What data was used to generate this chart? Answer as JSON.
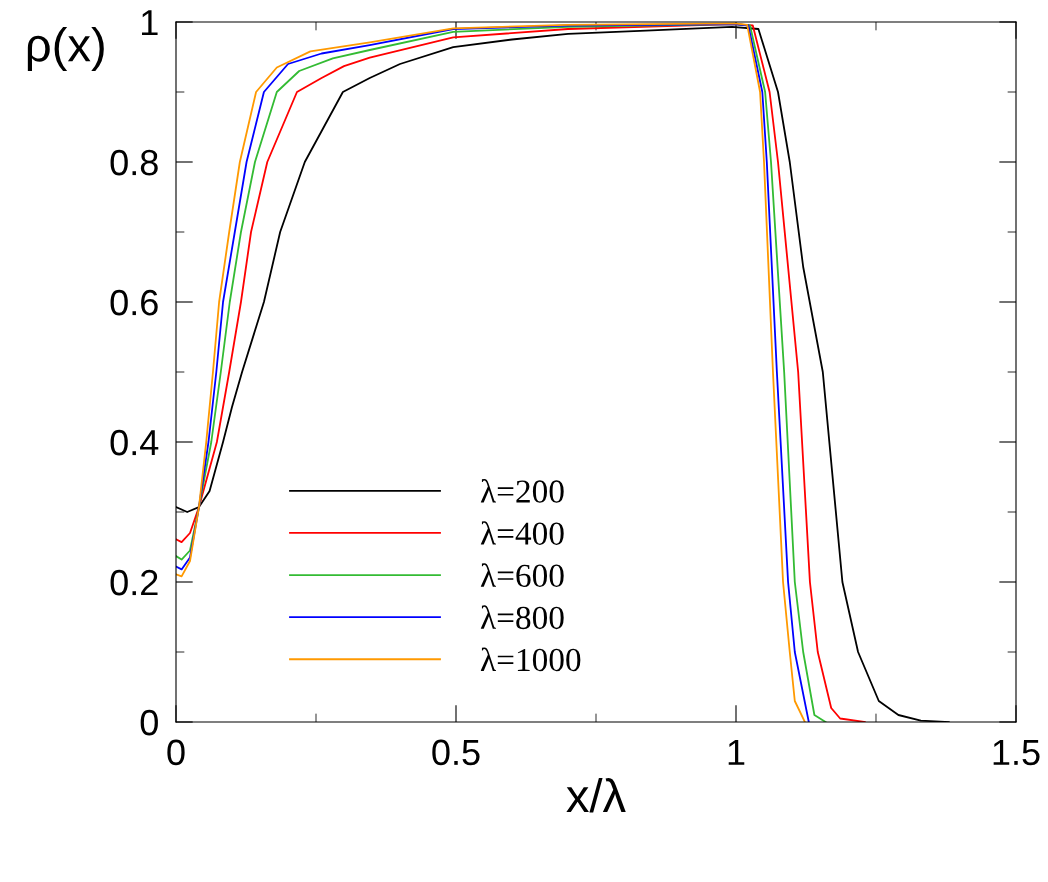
{
  "chart_data": {
    "type": "line",
    "xlabel": "x/λ",
    "ylabel": "ρ(x)",
    "xlim": [
      0,
      1.5
    ],
    "ylim": [
      0,
      1
    ],
    "xticks": [
      0,
      0.5,
      1,
      1.5
    ],
    "yticks": [
      0,
      0.2,
      0.4,
      0.6,
      0.8,
      1
    ],
    "grid": false,
    "legend": "lower left",
    "marker": "none",
    "line_style": "solid",
    "series": [
      {
        "name": "λ=200",
        "color": "#000000",
        "x": [
          0,
          0.02,
          0.041,
          0.06,
          0.084,
          0.1,
          0.118,
          0.157,
          0.186,
          0.23,
          0.298,
          0.346,
          0.4,
          0.495,
          0.6,
          0.7,
          0.85,
          0.993,
          1.04,
          1.075,
          1.096,
          1.12,
          1.155,
          1.19,
          1.218,
          1.255,
          1.29,
          1.33,
          1.38
        ],
        "values": [
          0.307,
          0.3,
          0.307,
          0.33,
          0.4,
          0.45,
          0.5,
          0.6,
          0.7,
          0.8,
          0.9,
          0.92,
          0.94,
          0.964,
          0.975,
          0.983,
          0.988,
          0.993,
          0.99,
          0.9,
          0.8,
          0.65,
          0.5,
          0.2,
          0.1,
          0.03,
          0.01,
          0.002,
          0
        ]
      },
      {
        "name": "λ=400",
        "color": "#ff0000",
        "x": [
          0,
          0.01,
          0.025,
          0.041,
          0.073,
          0.095,
          0.116,
          0.134,
          0.163,
          0.216,
          0.26,
          0.3,
          0.346,
          0.495,
          0.7,
          0.995,
          1.03,
          1.06,
          1.075,
          1.111,
          1.132,
          1.146,
          1.17,
          1.186,
          1.23
        ],
        "values": [
          0.261,
          0.257,
          0.27,
          0.307,
          0.4,
          0.5,
          0.6,
          0.7,
          0.8,
          0.9,
          0.92,
          0.937,
          0.949,
          0.978,
          0.99,
          0.997,
          0.995,
          0.9,
          0.8,
          0.5,
          0.2,
          0.1,
          0.02,
          0.005,
          0
        ]
      },
      {
        "name": "λ=600",
        "color": "#33bb33",
        "x": [
          0,
          0.01,
          0.025,
          0.041,
          0.063,
          0.08,
          0.096,
          0.116,
          0.141,
          0.18,
          0.22,
          0.28,
          0.346,
          0.495,
          0.7,
          0.997,
          1.025,
          1.052,
          1.0625,
          1.086,
          1.105,
          1.12,
          1.14,
          1.16
        ],
        "values": [
          0.237,
          0.232,
          0.245,
          0.307,
          0.4,
          0.5,
          0.6,
          0.7,
          0.8,
          0.9,
          0.93,
          0.948,
          0.96,
          0.986,
          0.993,
          0.997,
          0.995,
          0.9,
          0.8,
          0.5,
          0.2,
          0.1,
          0.01,
          0
        ]
      },
      {
        "name": "λ=800",
        "color": "#0000ff",
        "x": [
          0,
          0.01,
          0.025,
          0.041,
          0.058,
          0.072,
          0.084,
          0.105,
          0.126,
          0.157,
          0.2,
          0.26,
          0.346,
          0.495,
          0.7,
          0.998,
          1.022,
          1.047,
          1.055,
          1.073,
          1.093,
          1.105,
          1.13
        ],
        "values": [
          0.222,
          0.218,
          0.235,
          0.307,
          0.4,
          0.5,
          0.6,
          0.7,
          0.8,
          0.9,
          0.94,
          0.955,
          0.967,
          0.99,
          0.995,
          0.997,
          0.995,
          0.9,
          0.8,
          0.5,
          0.2,
          0.1,
          0
        ]
      },
      {
        "name": "λ=1000",
        "color": "#ff9900",
        "x": [
          0,
          0.01,
          0.025,
          0.041,
          0.054,
          0.066,
          0.077,
          0.095,
          0.114,
          0.143,
          0.18,
          0.24,
          0.346,
          0.495,
          0.7,
          0.998,
          1.02,
          1.043,
          1.05,
          1.066,
          1.084,
          1.096,
          1.105,
          1.123
        ],
        "values": [
          0.211,
          0.208,
          0.23,
          0.307,
          0.4,
          0.5,
          0.6,
          0.7,
          0.8,
          0.9,
          0.935,
          0.958,
          0.971,
          0.991,
          0.996,
          0.998,
          0.996,
          0.9,
          0.8,
          0.5,
          0.2,
          0.1,
          0.03,
          0
        ]
      }
    ]
  }
}
